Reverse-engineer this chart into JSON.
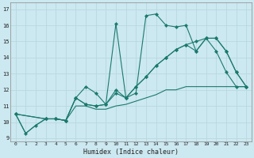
{
  "xlabel": "Humidex (Indice chaleur)",
  "bg_color": "#cce8f0",
  "line_color": "#1a7a6e",
  "xlim": [
    -0.5,
    23.5
  ],
  "ylim": [
    8.8,
    17.4
  ],
  "xticks": [
    0,
    1,
    2,
    3,
    4,
    5,
    6,
    7,
    8,
    9,
    10,
    11,
    12,
    13,
    14,
    15,
    16,
    17,
    18,
    19,
    20,
    21,
    22,
    23
  ],
  "yticks": [
    9,
    10,
    11,
    12,
    13,
    14,
    15,
    16,
    17
  ],
  "line1_x": [
    0,
    1,
    2,
    3,
    4,
    5,
    6,
    7,
    8,
    9,
    10,
    11,
    12,
    13,
    14,
    15,
    16,
    17,
    18,
    19,
    20,
    21,
    22,
    23
  ],
  "line1_y": [
    10.5,
    9.3,
    9.8,
    10.2,
    10.2,
    10.1,
    11.5,
    12.2,
    11.8,
    11.1,
    16.1,
    11.5,
    11.8,
    16.6,
    16.7,
    16.0,
    15.9,
    16.0,
    14.4,
    15.2,
    14.4,
    13.1,
    12.2,
    12.2
  ],
  "line2_x": [
    0,
    3,
    4,
    5,
    6,
    7,
    8,
    9,
    10,
    11,
    12,
    13,
    14,
    15,
    16,
    17,
    18,
    19,
    20,
    21,
    22,
    23
  ],
  "line2_y": [
    10.5,
    10.2,
    10.2,
    10.1,
    11.5,
    11.1,
    11.0,
    11.1,
    12.0,
    11.5,
    12.2,
    12.8,
    13.5,
    14.0,
    14.5,
    14.8,
    14.4,
    15.2,
    15.2,
    14.4,
    13.1,
    12.2
  ],
  "line3_x": [
    0,
    3,
    4,
    5,
    6,
    7,
    8,
    9,
    10,
    11,
    12,
    13,
    14,
    15,
    16,
    17,
    18,
    19,
    20,
    21,
    22,
    23
  ],
  "line3_y": [
    10.5,
    10.2,
    10.2,
    10.1,
    11.5,
    11.1,
    11.0,
    11.1,
    11.8,
    11.5,
    12.2,
    12.8,
    13.5,
    14.0,
    14.5,
    14.8,
    15.0,
    15.2,
    15.2,
    14.4,
    13.1,
    12.2
  ],
  "line4_x": [
    0,
    1,
    2,
    3,
    4,
    5,
    6,
    7,
    8,
    9,
    10,
    11,
    12,
    13,
    14,
    15,
    16,
    17,
    18,
    19,
    20,
    21,
    22,
    23
  ],
  "line4_y": [
    10.5,
    9.3,
    9.8,
    10.2,
    10.2,
    10.1,
    11.0,
    11.0,
    10.8,
    10.8,
    11.0,
    11.1,
    11.3,
    11.5,
    11.7,
    12.0,
    12.0,
    12.2,
    12.2,
    12.2,
    12.2,
    12.2,
    12.2,
    12.2
  ]
}
